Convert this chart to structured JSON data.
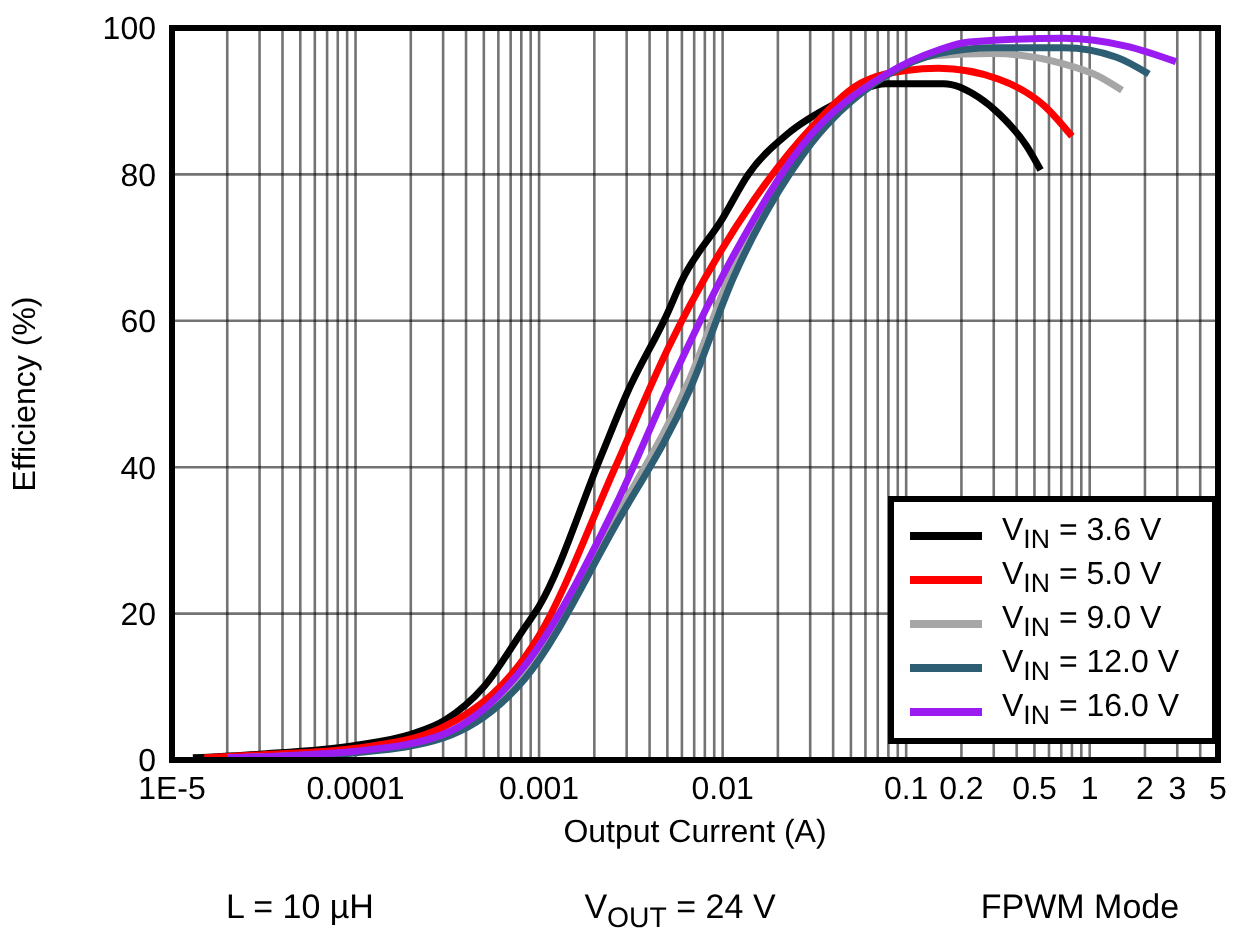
{
  "chart_data": {
    "type": "line",
    "xlabel": "Output Current (A)",
    "ylabel": "Efficiency (%)",
    "log": "x",
    "grid": true,
    "legend": "bottom right",
    "xlim": [
      1e-05,
      5
    ],
    "xticks": [
      {
        "value": 1e-05,
        "label": "1E-5"
      },
      0.0001,
      0.001,
      0.01,
      0.1,
      0.2,
      0.5,
      1,
      2,
      3,
      5
    ],
    "ylim": [
      0,
      100
    ],
    "yticks": [
      0,
      20,
      40,
      60,
      80,
      100
    ],
    "annotations": [
      "L = 10 µH",
      "V$_{OUT}$ = 24 V",
      "FPWM Mode"
    ],
    "series": [
      {
        "name": "V$_{IN}$ = 3.6 V",
        "color": "#000000",
        "x": [
          1.3e-05,
          3e-05,
          0.0001,
          0.0002,
          0.00031,
          0.0005,
          0.00083,
          0.001,
          0.0022,
          0.003,
          0.005,
          0.006,
          0.01,
          0.0138,
          0.0225,
          0.04,
          0.078,
          0.16,
          0.25,
          0.32,
          0.45,
          0.54
        ],
        "values": [
          0.3,
          0.8,
          2,
          3.5,
          5.5,
          10,
          18,
          21,
          41.8,
          50,
          61,
          65.5,
          74,
          80,
          85.5,
          89.5,
          92.4,
          92.4,
          90.5,
          88.3,
          84,
          80.6
        ]
      },
      {
        "name": "V$_{IN}$ = 5.0 V",
        "color": "#ff0000",
        "x": [
          1.5e-05,
          3e-05,
          0.0001,
          0.0003,
          0.001,
          0.0026,
          0.0051,
          0.0066,
          0.0148,
          0.031,
          0.056,
          0.1,
          0.15,
          0.32,
          0.57,
          0.8
        ],
        "values": [
          0.3,
          0.7,
          1.6,
          4.5,
          17,
          40,
          56.5,
          62,
          76.5,
          86.6,
          92.4,
          94.2,
          94.5,
          93,
          89.3,
          85.2
        ]
      },
      {
        "name": "V$_{IN}$ = 9.0 V",
        "color": "#a6a6a6",
        "x": [
          2e-05,
          0.0001,
          0.0003,
          0.00083,
          0.0026,
          0.0066,
          0.0115,
          0.027,
          0.078,
          0.14,
          0.3,
          0.72,
          1.1,
          1.5
        ],
        "values": [
          0.3,
          1.1,
          3.3,
          12,
          33,
          52,
          67.5,
          83.5,
          93.6,
          96.2,
          96.5,
          95.1,
          93.5,
          91.5
        ]
      },
      {
        "name": "V$_{IN}$ = 12.0 V",
        "color": "#2e5e73",
        "x": [
          2e-05,
          5e-05,
          0.0001,
          0.0003,
          0.00083,
          0.0026,
          0.0066,
          0.0115,
          0.027,
          0.078,
          0.15,
          0.3,
          0.72,
          1.4,
          2.1
        ],
        "values": [
          0.2,
          0.5,
          1,
          3,
          11,
          32,
          50.5,
          66,
          82.5,
          93.5,
          96.5,
          97.3,
          97.3,
          96,
          93.7
        ]
      },
      {
        "name": "V$_{IN}$ = 16.0 V",
        "color": "#9b1cf0",
        "x": [
          2e-05,
          5e-05,
          0.0001,
          0.0003,
          0.00083,
          0.0026,
          0.0051,
          0.0115,
          0.027,
          0.078,
          0.15,
          0.22,
          0.72,
          1.6,
          2.95
        ],
        "values": [
          0.3,
          0.7,
          1.2,
          3.5,
          12.8,
          34.7,
          51,
          69,
          83.9,
          93.7,
          97,
          98.1,
          98.6,
          97.5,
          95.4
        ]
      }
    ]
  }
}
